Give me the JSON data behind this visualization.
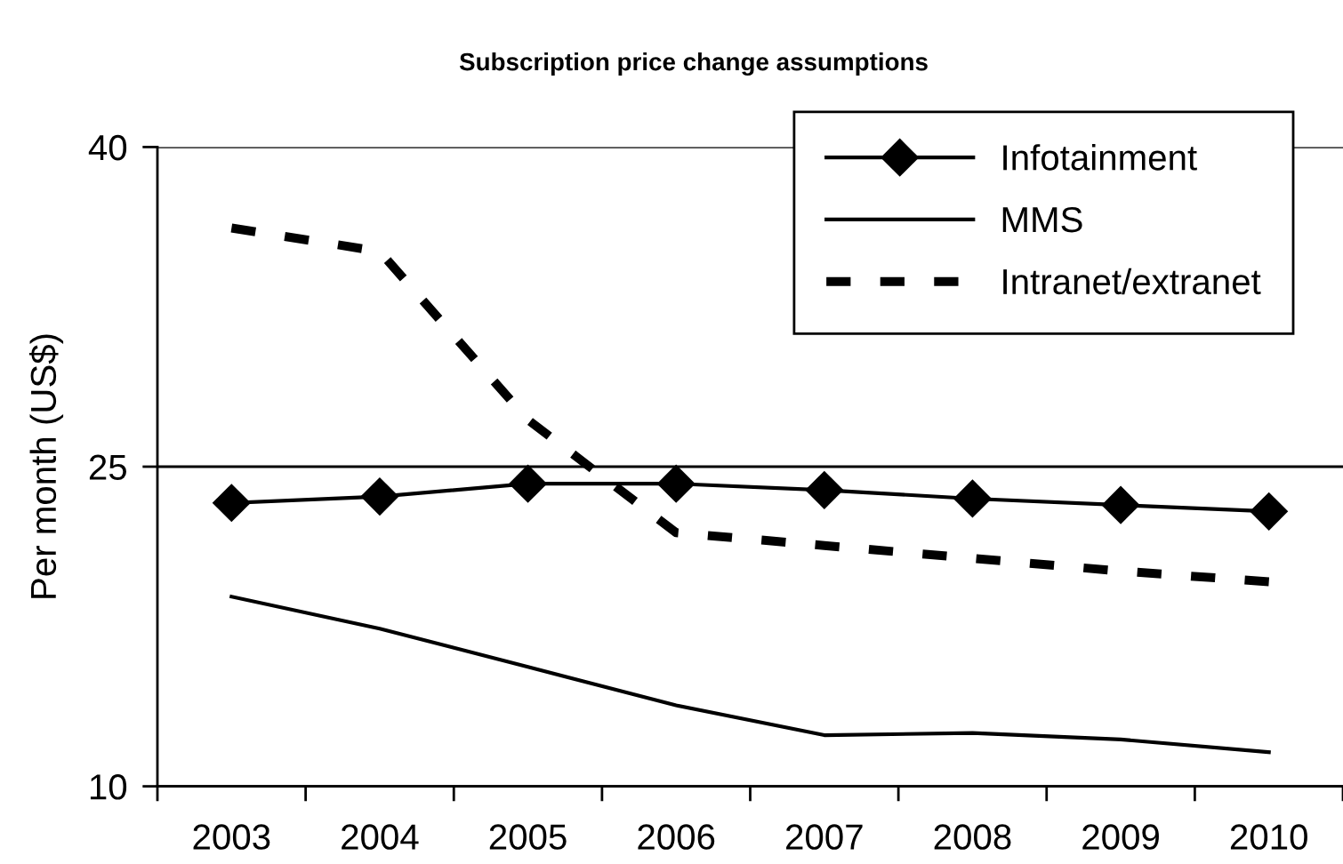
{
  "chart_data": {
    "type": "line",
    "title": "Subscription price change assumptions",
    "ylabel": "Per month (US$)",
    "categories": [
      "2003",
      "2004",
      "2005",
      "2006",
      "2007",
      "2008",
      "2009",
      "2010"
    ],
    "series": [
      {
        "name": "Infotainment",
        "color": "#000000",
        "marker": "diamond",
        "line_style": "solid",
        "values": [
          23.3,
          23.6,
          24.2,
          24.2,
          23.9,
          23.5,
          23.2,
          22.9
        ]
      },
      {
        "name": "MMS",
        "color": "#000000",
        "marker": "none",
        "line_style": "solid",
        "values": [
          18.9,
          17.4,
          15.6,
          13.8,
          12.4,
          12.5,
          12.2,
          11.6
        ]
      },
      {
        "name": "Intranet/extranet",
        "color": "#000000",
        "marker": "none",
        "line_style": "dashed",
        "values": [
          36.2,
          35.1,
          27.2,
          21.9,
          21.3,
          20.7,
          20.1,
          19.6
        ]
      }
    ],
    "ylim": [
      10,
      40
    ],
    "yticks": [
      10,
      25,
      40
    ],
    "grid": "y",
    "legend": "top right"
  }
}
